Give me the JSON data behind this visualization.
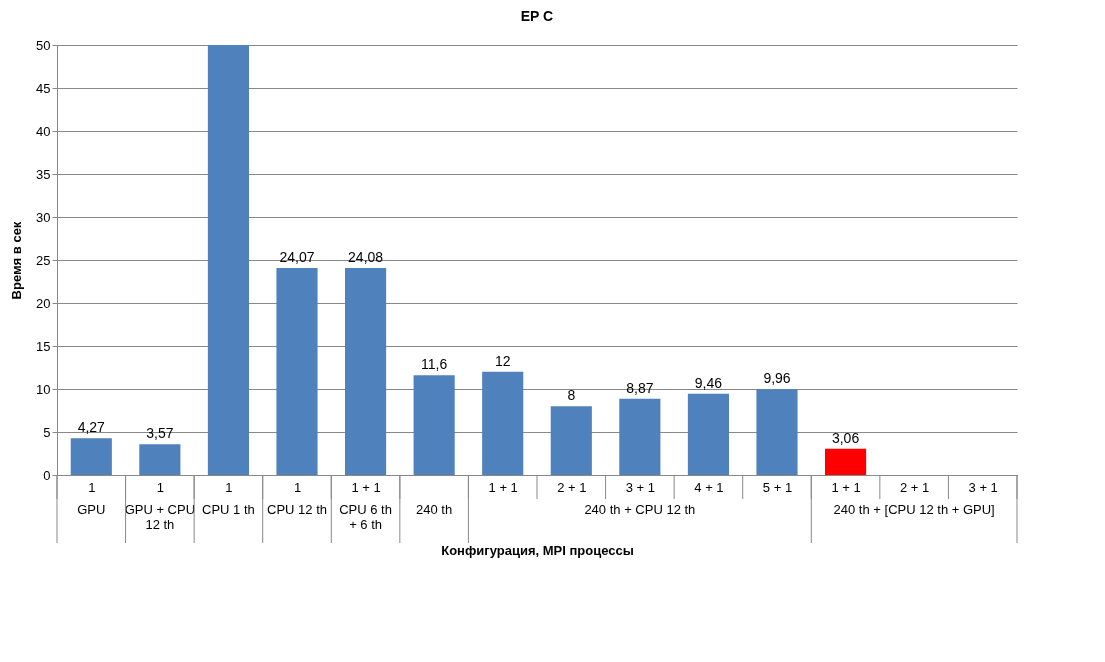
{
  "chart_data": {
    "type": "bar",
    "title": "EP C",
    "xlabel": "Конфигурация,  MPI процессы",
    "ylabel": "Время в сек",
    "categories": [
      "1",
      "1",
      "1",
      "1",
      "1 + 1",
      null,
      "1 + 1",
      "2 + 1",
      "3 + 1",
      "4 + 1",
      "5 + 1",
      "1 + 1",
      "2 + 1",
      "3 + 1"
    ],
    "values": [
      4.27,
      3.57,
      50,
      24.07,
      24.08,
      11.6,
      12,
      8,
      8.87,
      9.46,
      9.96,
      3.06,
      null,
      null
    ],
    "colors": [
      "#4f81bd",
      "#4f81bd",
      "#4f81bd",
      "#4f81bd",
      "#4f81bd",
      "#4f81bd",
      "#4f81bd",
      "#4f81bd",
      "#4f81bd",
      "#4f81bd",
      "#4f81bd",
      "#ff0000",
      "#4f81bd",
      "#4f81bd"
    ],
    "value_labels": [
      "4,27",
      "3,57",
      null,
      "24,07",
      "24,08",
      "11,6",
      "12",
      "8",
      "8,87",
      "9,46",
      "9,96",
      "3,06",
      null,
      null
    ],
    "annotations": [
      "GPU",
      "GPU + CPU 12 th",
      "CPU 1 th",
      "CPU 12 th",
      "CPU 6 th + 6 th",
      "240 th",
      "240 th + CPU 12 th",
      "240 th +  [CPU 12 th + GPU]"
    ],
    "ylim": [
      0,
      50
    ],
    "yticks": [
      0,
      5,
      10,
      15,
      20,
      25,
      30,
      35,
      40,
      45,
      50
    ],
    "grid": "y"
  }
}
